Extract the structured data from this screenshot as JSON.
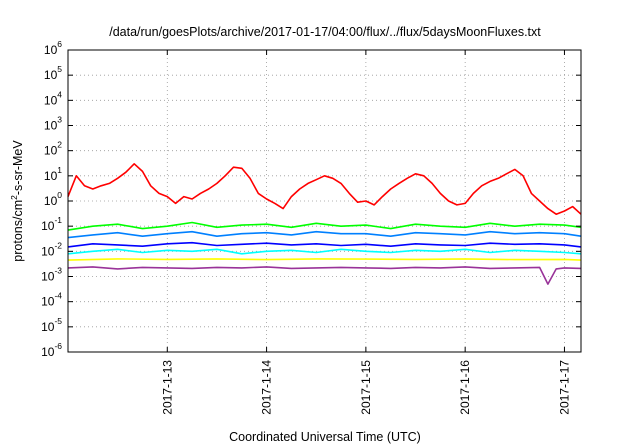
{
  "chart_data": {
    "type": "line",
    "title": "/data/run/goesPlots/archive/2017-01-17/04:00/flux/../flux/5daysMoonFluxes.txt",
    "xlabel": "Coordinated Universal Time (UTC)",
    "ylabel": {
      "prefix": "protons/cm",
      "sup": "2",
      "suffix": "-s-sr-MeV"
    },
    "y_scale": "log",
    "ylim": [
      1e-06,
      1000000.0
    ],
    "xlim": [
      "2017-01-12T00:00",
      "2017-01-17T04:00"
    ],
    "grid": true,
    "x_ticks": [
      {
        "label": "2017-1-13",
        "x": "2017-01-13T00:00"
      },
      {
        "label": "2017-1-14",
        "x": "2017-01-14T00:00"
      },
      {
        "label": "2017-1-15",
        "x": "2017-01-15T00:00"
      },
      {
        "label": "2017-1-16",
        "x": "2017-01-16T00:00"
      },
      {
        "label": "2017-1-17",
        "x": "2017-01-17T00:00"
      }
    ],
    "y_ticks": [
      {
        "base": "10",
        "exp": "-6",
        "value": 1e-06
      },
      {
        "base": "10",
        "exp": "-5",
        "value": 1e-05
      },
      {
        "base": "10",
        "exp": "-4",
        "value": 0.0001
      },
      {
        "base": "10",
        "exp": "-3",
        "value": 0.001
      },
      {
        "base": "10",
        "exp": "-2",
        "value": 0.01
      },
      {
        "base": "10",
        "exp": "-1",
        "value": 0.1
      },
      {
        "base": "10",
        "exp": "0",
        "value": 1
      },
      {
        "base": "10",
        "exp": "1",
        "value": 10
      },
      {
        "base": "10",
        "exp": "2",
        "value": 100
      },
      {
        "base": "10",
        "exp": "3",
        "value": 1000.0
      },
      {
        "base": "10",
        "exp": "4",
        "value": 10000.0
      },
      {
        "base": "10",
        "exp": "5",
        "value": 100000.0
      },
      {
        "base": "10",
        "exp": "6",
        "value": 1000000.0
      }
    ],
    "series": [
      {
        "color": "#ff0000",
        "x": [
          "2017-01-12T00:00",
          "2017-01-12T02:00",
          "2017-01-12T04:00",
          "2017-01-12T06:00",
          "2017-01-12T08:00",
          "2017-01-12T10:00",
          "2017-01-12T12:00",
          "2017-01-12T14:00",
          "2017-01-12T16:00",
          "2017-01-12T18:00",
          "2017-01-12T20:00",
          "2017-01-12T22:00",
          "2017-01-13T00:00",
          "2017-01-13T02:00",
          "2017-01-13T04:00",
          "2017-01-13T06:00",
          "2017-01-13T08:00",
          "2017-01-13T10:00",
          "2017-01-13T12:00",
          "2017-01-13T14:00",
          "2017-01-13T16:00",
          "2017-01-13T18:00",
          "2017-01-13T20:00",
          "2017-01-13T22:00",
          "2017-01-14T00:00",
          "2017-01-14T02:00",
          "2017-01-14T04:00",
          "2017-01-14T06:00",
          "2017-01-14T08:00",
          "2017-01-14T10:00",
          "2017-01-14T12:00",
          "2017-01-14T14:00",
          "2017-01-14T16:00",
          "2017-01-14T18:00",
          "2017-01-14T20:00",
          "2017-01-14T22:00",
          "2017-01-15T00:00",
          "2017-01-15T02:00",
          "2017-01-15T04:00",
          "2017-01-15T06:00",
          "2017-01-15T08:00",
          "2017-01-15T10:00",
          "2017-01-15T12:00",
          "2017-01-15T14:00",
          "2017-01-15T16:00",
          "2017-01-15T18:00",
          "2017-01-15T20:00",
          "2017-01-15T22:00",
          "2017-01-16T00:00",
          "2017-01-16T02:00",
          "2017-01-16T04:00",
          "2017-01-16T06:00",
          "2017-01-16T08:00",
          "2017-01-16T10:00",
          "2017-01-16T12:00",
          "2017-01-16T14:00",
          "2017-01-16T16:00",
          "2017-01-16T18:00",
          "2017-01-16T20:00",
          "2017-01-16T22:00",
          "2017-01-17T00:00",
          "2017-01-17T02:00",
          "2017-01-17T04:00"
        ],
        "values": [
          1.5,
          10,
          4,
          3,
          4,
          5,
          8,
          14,
          30,
          15,
          4,
          2,
          1.5,
          0.8,
          1.5,
          1.2,
          2,
          3,
          5,
          10,
          22,
          20,
          8,
          2,
          1.2,
          0.8,
          0.5,
          1.5,
          3,
          5,
          7,
          10,
          8,
          5,
          2,
          0.9,
          1,
          0.7,
          1.5,
          3,
          5,
          8,
          12,
          10,
          5,
          2,
          1,
          0.7,
          0.8,
          2,
          4,
          6,
          8,
          12,
          18,
          10,
          2,
          1,
          0.5,
          0.3,
          0.4,
          0.6,
          0.3
        ]
      },
      {
        "color": "#00ff00",
        "x": [
          "2017-01-12T00:00",
          "2017-01-12T06:00",
          "2017-01-12T12:00",
          "2017-01-12T18:00",
          "2017-01-13T00:00",
          "2017-01-13T06:00",
          "2017-01-13T12:00",
          "2017-01-13T18:00",
          "2017-01-14T00:00",
          "2017-01-14T06:00",
          "2017-01-14T12:00",
          "2017-01-14T18:00",
          "2017-01-15T00:00",
          "2017-01-15T06:00",
          "2017-01-15T12:00",
          "2017-01-15T18:00",
          "2017-01-16T00:00",
          "2017-01-16T06:00",
          "2017-01-16T12:00",
          "2017-01-16T18:00",
          "2017-01-17T00:00",
          "2017-01-17T04:00"
        ],
        "values": [
          0.07,
          0.1,
          0.12,
          0.08,
          0.1,
          0.14,
          0.09,
          0.11,
          0.12,
          0.09,
          0.13,
          0.1,
          0.11,
          0.08,
          0.12,
          0.1,
          0.09,
          0.13,
          0.1,
          0.12,
          0.11,
          0.09
        ]
      },
      {
        "color": "#00ffff",
        "x": [
          "2017-01-12T00:00",
          "2017-01-12T06:00",
          "2017-01-12T12:00",
          "2017-01-12T18:00",
          "2017-01-13T00:00",
          "2017-01-13T06:00",
          "2017-01-13T12:00",
          "2017-01-13T18:00",
          "2017-01-14T00:00",
          "2017-01-14T06:00",
          "2017-01-14T12:00",
          "2017-01-14T18:00",
          "2017-01-15T00:00",
          "2017-01-15T06:00",
          "2017-01-15T12:00",
          "2017-01-15T18:00",
          "2017-01-16T00:00",
          "2017-01-16T06:00",
          "2017-01-16T12:00",
          "2017-01-16T18:00",
          "2017-01-17T00:00",
          "2017-01-17T04:00"
        ],
        "values": [
          0.008,
          0.01,
          0.012,
          0.009,
          0.011,
          0.01,
          0.012,
          0.008,
          0.01,
          0.011,
          0.009,
          0.012,
          0.01,
          0.009,
          0.011,
          0.01,
          0.012,
          0.009,
          0.011,
          0.01,
          0.009,
          0.008
        ]
      },
      {
        "color": "#0080ff",
        "x": [
          "2017-01-12T00:00",
          "2017-01-12T06:00",
          "2017-01-12T12:00",
          "2017-01-12T18:00",
          "2017-01-13T00:00",
          "2017-01-13T06:00",
          "2017-01-13T12:00",
          "2017-01-13T18:00",
          "2017-01-14T00:00",
          "2017-01-14T06:00",
          "2017-01-14T12:00",
          "2017-01-14T18:00",
          "2017-01-15T00:00",
          "2017-01-15T06:00",
          "2017-01-15T12:00",
          "2017-01-15T18:00",
          "2017-01-16T00:00",
          "2017-01-16T06:00",
          "2017-01-16T12:00",
          "2017-01-16T18:00",
          "2017-01-17T00:00",
          "2017-01-17T04:00"
        ],
        "values": [
          0.035,
          0.045,
          0.055,
          0.04,
          0.05,
          0.06,
          0.04,
          0.05,
          0.055,
          0.045,
          0.06,
          0.05,
          0.05,
          0.04,
          0.055,
          0.05,
          0.045,
          0.06,
          0.05,
          0.055,
          0.05,
          0.04
        ]
      },
      {
        "color": "#0000ff",
        "x": [
          "2017-01-12T00:00",
          "2017-01-12T06:00",
          "2017-01-12T12:00",
          "2017-01-12T18:00",
          "2017-01-13T00:00",
          "2017-01-13T06:00",
          "2017-01-13T12:00",
          "2017-01-13T18:00",
          "2017-01-14T00:00",
          "2017-01-14T06:00",
          "2017-01-14T12:00",
          "2017-01-14T18:00",
          "2017-01-15T00:00",
          "2017-01-15T06:00",
          "2017-01-15T12:00",
          "2017-01-15T18:00",
          "2017-01-16T00:00",
          "2017-01-16T06:00",
          "2017-01-16T12:00",
          "2017-01-16T18:00",
          "2017-01-17T00:00",
          "2017-01-17T04:00"
        ],
        "values": [
          0.015,
          0.02,
          0.018,
          0.016,
          0.02,
          0.022,
          0.017,
          0.019,
          0.021,
          0.018,
          0.02,
          0.017,
          0.019,
          0.016,
          0.02,
          0.018,
          0.017,
          0.021,
          0.019,
          0.02,
          0.018,
          0.015
        ]
      },
      {
        "color": "#ffff00",
        "x": [
          "2017-01-12T00:00",
          "2017-01-12T12:00",
          "2017-01-13T00:00",
          "2017-01-13T12:00",
          "2017-01-14T00:00",
          "2017-01-14T12:00",
          "2017-01-15T00:00",
          "2017-01-15T12:00",
          "2017-01-16T00:00",
          "2017-01-16T12:00",
          "2017-01-17T00:00",
          "2017-01-17T04:00"
        ],
        "values": [
          0.0045,
          0.005,
          0.0048,
          0.005,
          0.0047,
          0.005,
          0.0049,
          0.0048,
          0.005,
          0.0047,
          0.0048,
          0.0045
        ]
      },
      {
        "color": "#993399",
        "x": [
          "2017-01-12T00:00",
          "2017-01-12T06:00",
          "2017-01-12T12:00",
          "2017-01-12T18:00",
          "2017-01-13T00:00",
          "2017-01-13T06:00",
          "2017-01-13T12:00",
          "2017-01-13T18:00",
          "2017-01-14T00:00",
          "2017-01-14T06:00",
          "2017-01-14T12:00",
          "2017-01-14T18:00",
          "2017-01-15T00:00",
          "2017-01-15T06:00",
          "2017-01-15T12:00",
          "2017-01-15T18:00",
          "2017-01-16T00:00",
          "2017-01-16T06:00",
          "2017-01-16T12:00",
          "2017-01-16T18:00",
          "2017-01-16T20:00",
          "2017-01-16T22:00",
          "2017-01-17T00:00",
          "2017-01-17T04:00"
        ],
        "values": [
          0.0022,
          0.0024,
          0.002,
          0.0023,
          0.0022,
          0.0021,
          0.0023,
          0.0022,
          0.0024,
          0.0021,
          0.0022,
          0.0023,
          0.0022,
          0.0021,
          0.0023,
          0.0022,
          0.0024,
          0.0021,
          0.0022,
          0.0023,
          0.0005,
          0.002,
          0.0022,
          0.0021
        ]
      }
    ]
  }
}
